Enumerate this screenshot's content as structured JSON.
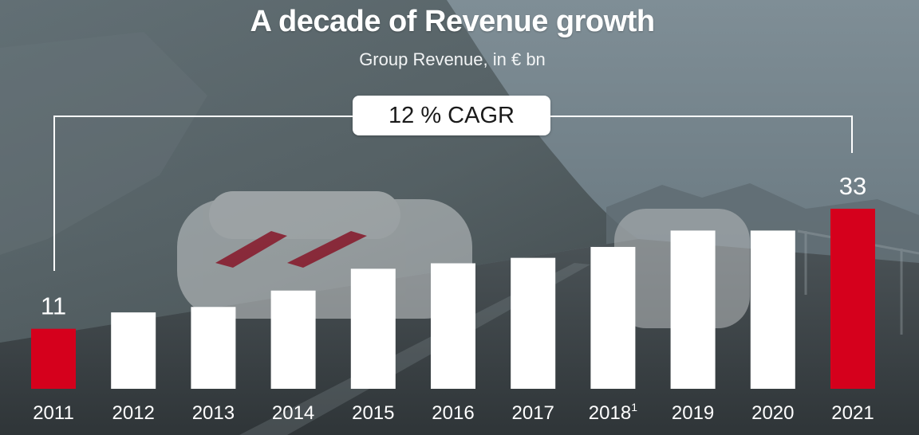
{
  "title": "A decade of Revenue growth",
  "subtitle": "Group Revenue, in € bn",
  "cagr_label": "12 % CAGR",
  "colors": {
    "highlight": "#d5001c",
    "bar": "#ffffff",
    "text": "#ffffff"
  },
  "chart_data": {
    "type": "bar",
    "title": "A decade of Revenue growth",
    "subtitle": "Group Revenue, in € bn",
    "categories": [
      "2011",
      "2012",
      "2013",
      "2014",
      "2015",
      "2016",
      "2017",
      "2018",
      "2019",
      "2020",
      "2021"
    ],
    "category_footnotes": [
      "",
      "",
      "",
      "",
      "",
      "",
      "",
      "1",
      "",
      "",
      ""
    ],
    "values": [
      11,
      14,
      15,
      18,
      22,
      23,
      24,
      26,
      29,
      29,
      33
    ],
    "data_labels": [
      "11",
      "",
      "",
      "",
      "",
      "",
      "",
      "",
      "",
      "",
      "33"
    ],
    "highlighted": [
      "2011",
      "2021"
    ],
    "annotation": "12 % CAGR",
    "xlabel": "",
    "ylabel": "",
    "ylim": [
      0,
      33
    ],
    "grid": false,
    "legend": "none"
  }
}
